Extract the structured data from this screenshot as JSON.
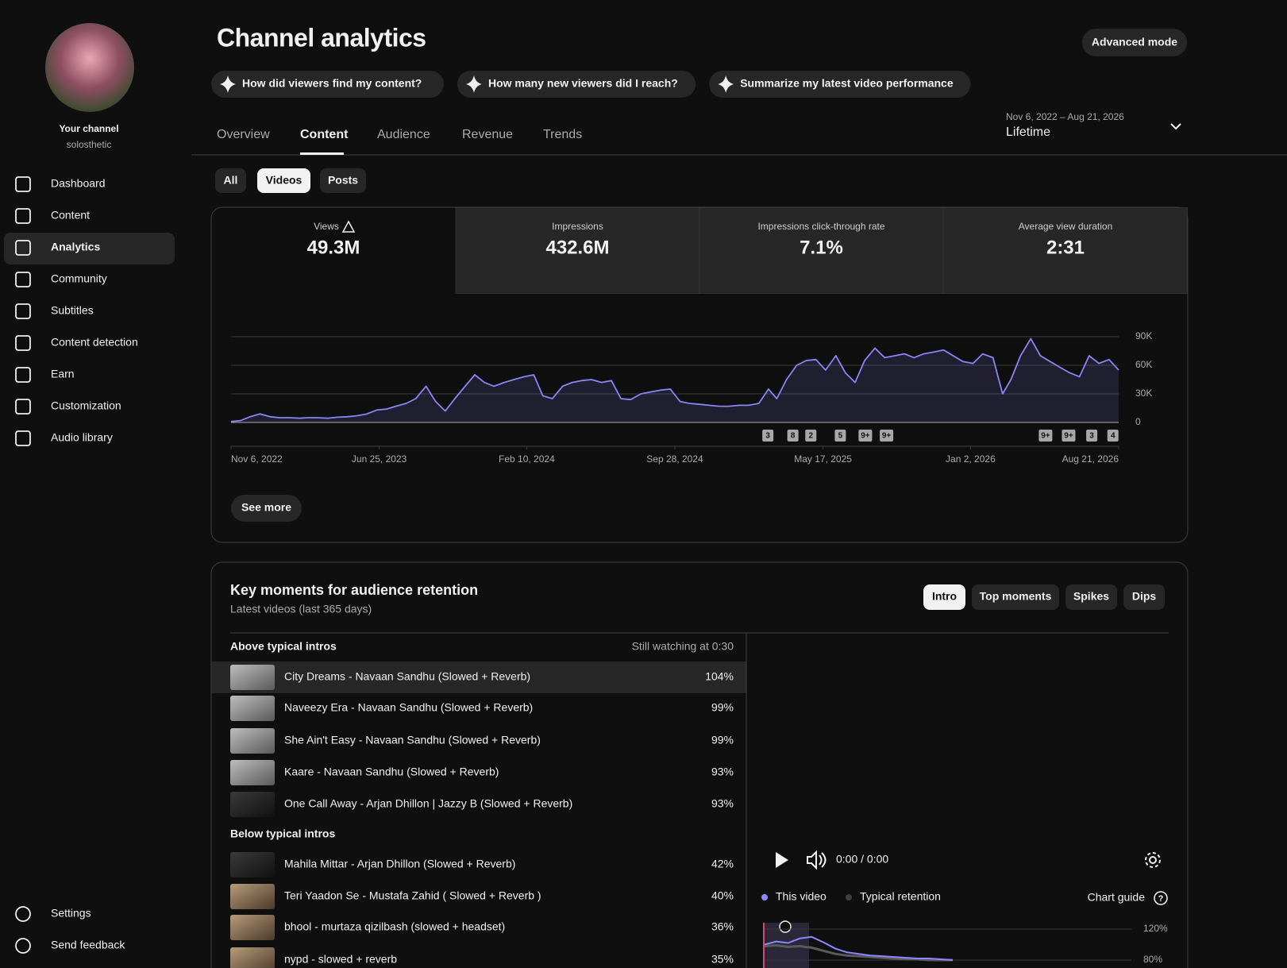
{
  "sidebar": {
    "channel_label": "Your channel",
    "channel_name": "solosthetic",
    "nav": [
      "Dashboard",
      "Content",
      "Analytics",
      "Community",
      "Subtitles",
      "Content detection",
      "Earn",
      "Customization",
      "Audio library"
    ],
    "bottom_nav": [
      "Settings",
      "Send feedback"
    ]
  },
  "header": {
    "title": "Channel analytics",
    "advanced_mode": "Advanced mode",
    "suggestions": [
      "How did viewers find my content?",
      "How many new viewers did I reach?",
      "Summarize my latest video performance"
    ],
    "tabs": [
      "Overview",
      "Content",
      "Audience",
      "Revenue",
      "Trends"
    ],
    "date_range": "Nov 6, 2022 – Aug 21, 2026",
    "period": "Lifetime"
  },
  "filters": [
    "All",
    "Videos",
    "Posts"
  ],
  "metrics": [
    {
      "label": "Views",
      "value": "49.3M"
    },
    {
      "label": "Impressions",
      "value": "432.6M"
    },
    {
      "label": "Impressions click-through rate",
      "value": "7.1%"
    },
    {
      "label": "Average view duration",
      "value": "2:31"
    }
  ],
  "see_more": "See more",
  "chart_data": [
    {
      "type": "line",
      "color": "#8b84f5",
      "x": [
        "2022-11-06",
        "2022-11-21",
        "2022-12-06",
        "2022-12-21",
        "2023-01-06",
        "2023-01-21",
        "2023-02-06",
        "2023-02-21",
        "2023-03-06",
        "2023-03-21",
        "2023-04-06",
        "2023-04-21",
        "2023-05-06",
        "2023-05-21",
        "2023-06-06",
        "2023-06-21",
        "2023-07-06",
        "2023-07-21",
        "2023-08-06",
        "2023-08-21",
        "2023-09-06",
        "2023-09-21",
        "2023-10-06",
        "2023-10-21",
        "2023-11-06",
        "2023-11-21",
        "2023-12-06",
        "2023-12-21",
        "2024-01-06",
        "2024-01-21",
        "2024-02-06",
        "2024-02-21",
        "2024-03-06",
        "2024-03-21",
        "2024-04-06",
        "2024-04-21",
        "2024-05-06",
        "2024-05-21",
        "2024-06-06",
        "2024-06-21",
        "2024-07-06",
        "2024-07-21",
        "2024-08-06",
        "2024-08-21",
        "2024-09-06",
        "2024-09-21",
        "2024-10-06",
        "2024-10-21",
        "2024-11-06",
        "2024-11-21",
        "2024-12-06",
        "2024-12-21",
        "2025-01-06",
        "2025-01-21",
        "2025-02-06",
        "2025-02-21",
        "2025-03-06",
        "2025-03-21",
        "2025-04-06",
        "2025-04-21",
        "2025-05-06",
        "2025-05-21",
        "2025-06-06",
        "2025-06-21",
        "2025-07-06",
        "2025-07-21",
        "2025-08-06",
        "2025-08-21",
        "2025-09-06",
        "2025-09-21",
        "2025-10-06",
        "2025-10-21",
        "2025-11-06",
        "2025-11-21",
        "2025-12-06",
        "2025-12-21",
        "2026-01-06",
        "2026-01-21",
        "2026-02-06",
        "2026-02-21",
        "2026-03-06",
        "2026-03-21",
        "2026-04-06",
        "2026-04-21",
        "2026-05-06",
        "2026-05-21",
        "2026-06-06",
        "2026-06-21",
        "2026-07-06",
        "2026-07-21",
        "2026-08-06",
        "2026-08-21"
      ],
      "values": [
        1000,
        2000,
        6000,
        9000,
        6000,
        5000,
        5000,
        4500,
        5000,
        5000,
        4500,
        5500,
        6000,
        7000,
        9000,
        13000,
        14000,
        17000,
        20000,
        25000,
        38000,
        22000,
        12000,
        25000,
        38000,
        50000,
        42000,
        38000,
        42000,
        45000,
        48000,
        50000,
        28000,
        25000,
        38000,
        42000,
        44000,
        45000,
        42000,
        44000,
        25000,
        24000,
        30000,
        32000,
        34000,
        35000,
        22000,
        20000,
        19000,
        18000,
        17000,
        17000,
        18000,
        18000,
        20000,
        35000,
        25000,
        45000,
        60000,
        65000,
        66000,
        55000,
        70000,
        52000,
        42000,
        65000,
        78000,
        68000,
        70000,
        72000,
        68000,
        72000,
        74000,
        76000,
        70000,
        64000,
        62000,
        72000,
        68000,
        30000,
        45000,
        70000,
        88000,
        70000,
        64000,
        58000,
        52000,
        48000,
        70000,
        62000,
        66000,
        55000
      ],
      "xlim": [
        "2022-11-06",
        "2026-08-21"
      ],
      "xticks": [
        {
          "value": "2022-11-06",
          "label": "Nov 6, 2022"
        },
        {
          "value": "2023-06-25",
          "label": "Jun 25, 2023"
        },
        {
          "value": "2024-02-10",
          "label": "Feb 10, 2024"
        },
        {
          "value": "2024-09-28",
          "label": "Sep 28, 2024"
        },
        {
          "value": "2025-05-17",
          "label": "May 17, 2025"
        },
        {
          "value": "2026-01-02",
          "label": "Jan 2, 2026"
        },
        {
          "value": "2026-08-21",
          "label": "Aug 21, 2026"
        }
      ],
      "ylim": [
        0,
        90000
      ],
      "yticks": [
        0,
        {
          "value": 30000,
          "label": "30K"
        },
        {
          "value": 60000,
          "label": "60K"
        },
        {
          "value": 90000,
          "label": "90K"
        }
      ],
      "grid": true,
      "annotations": [
        {
          "x": "2025-02-20",
          "label": "3"
        },
        {
          "x": "2025-03-31",
          "label": "8"
        },
        {
          "x": "2025-04-28",
          "label": "2"
        },
        {
          "x": "2025-06-13",
          "label": "5"
        },
        {
          "x": "2025-07-22",
          "label": "9+"
        },
        {
          "x": "2025-08-24",
          "label": "9+"
        },
        {
          "x": "2026-04-29",
          "label": "9+"
        },
        {
          "x": "2026-06-04",
          "label": "9+"
        },
        {
          "x": "2026-07-10",
          "label": "3"
        },
        {
          "x": "2026-08-12",
          "label": "4"
        }
      ]
    },
    {
      "type": "line",
      "series": [
        {
          "name": "This video",
          "color": "#8f87ff",
          "values": [
            100,
            104,
            102,
            108,
            110,
            103,
            95,
            90,
            88,
            86,
            85,
            84,
            83,
            82,
            82,
            81,
            80
          ]
        },
        {
          "name": "Typical retention",
          "color": "#5a5a5a",
          "values": [
            98,
            99,
            97,
            98,
            96,
            92,
            88,
            86,
            85,
            84,
            83,
            82,
            81,
            81,
            80,
            80,
            80
          ]
        }
      ],
      "ylim": [
        80,
        120
      ],
      "yticks": [
        {
          "value": 120,
          "label": "120%"
        },
        {
          "value": 80,
          "label": "80%"
        }
      ],
      "grid": true
    }
  ],
  "retention": {
    "title": "Key moments for audience retention",
    "subtitle": "Latest videos (last 365 days)",
    "buttons": [
      "Intro",
      "Top moments",
      "Spikes",
      "Dips"
    ],
    "above_label": "Above typical intros",
    "column_label": "Still watching at 0:30",
    "above": [
      {
        "title": "City Dreams - Navaan Sandhu (Slowed + Reverb)",
        "value": "104%"
      },
      {
        "title": "Naveezy Era - Navaan Sandhu (Slowed + Reverb)",
        "value": "99%"
      },
      {
        "title": "She Ain't Easy - Navaan Sandhu (Slowed + Reverb)",
        "value": "99%"
      },
      {
        "title": "Kaare - Navaan Sandhu (Slowed + Reverb)",
        "value": "93%"
      },
      {
        "title": "One Call Away - Arjan Dhillon | Jazzy B (Slowed + Reverb)",
        "value": "93%"
      }
    ],
    "below_label": "Below typical intros",
    "below": [
      {
        "title": "Mahila Mittar - Arjan Dhillon (Slowed + Reverb)",
        "value": "42%"
      },
      {
        "title": "Teri Yaadon Se - Mustafa Zahid ( Slowed + Reverb )",
        "value": "40%"
      },
      {
        "title": "bhool - murtaza qizilbash (slowed + headset)",
        "value": "36%"
      },
      {
        "title": "nypd - slowed + reverb",
        "value": "35%"
      }
    ],
    "time": "0:00 / 0:00",
    "chart_guide": "Chart guide"
  }
}
